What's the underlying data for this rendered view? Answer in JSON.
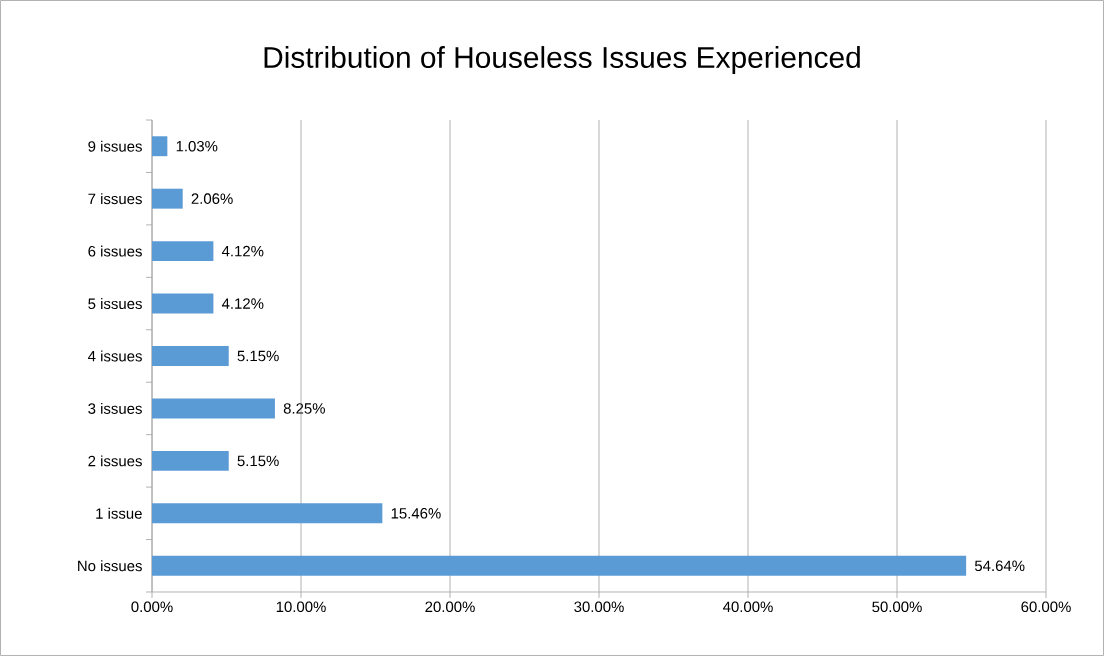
{
  "chart_data": {
    "type": "bar",
    "orientation": "horizontal",
    "title": "Distribution of Houseless Issues Experienced",
    "categories": [
      "9 issues",
      "7 issues",
      "6 issues",
      "5 issues",
      "4 issues",
      "3 issues",
      "2 issues",
      "1 issue",
      "No issues"
    ],
    "values": [
      1.03,
      2.06,
      4.12,
      4.12,
      5.15,
      8.25,
      5.15,
      15.46,
      54.64
    ],
    "value_labels": [
      "1.03%",
      "2.06%",
      "4.12%",
      "4.12%",
      "5.15%",
      "8.25%",
      "5.15%",
      "15.46%",
      "54.64%"
    ],
    "color": "#5b9bd5",
    "xlim": [
      0,
      60
    ],
    "xticks": [
      {
        "value": 0,
        "label": "0.00%"
      },
      {
        "value": 10,
        "label": "10.00%"
      },
      {
        "value": 20,
        "label": "20.00%"
      },
      {
        "value": 30,
        "label": "30.00%"
      },
      {
        "value": 40,
        "label": "40.00%"
      },
      {
        "value": 50,
        "label": "50.00%"
      },
      {
        "value": 60,
        "label": "60.00%"
      }
    ],
    "grid": "x"
  }
}
